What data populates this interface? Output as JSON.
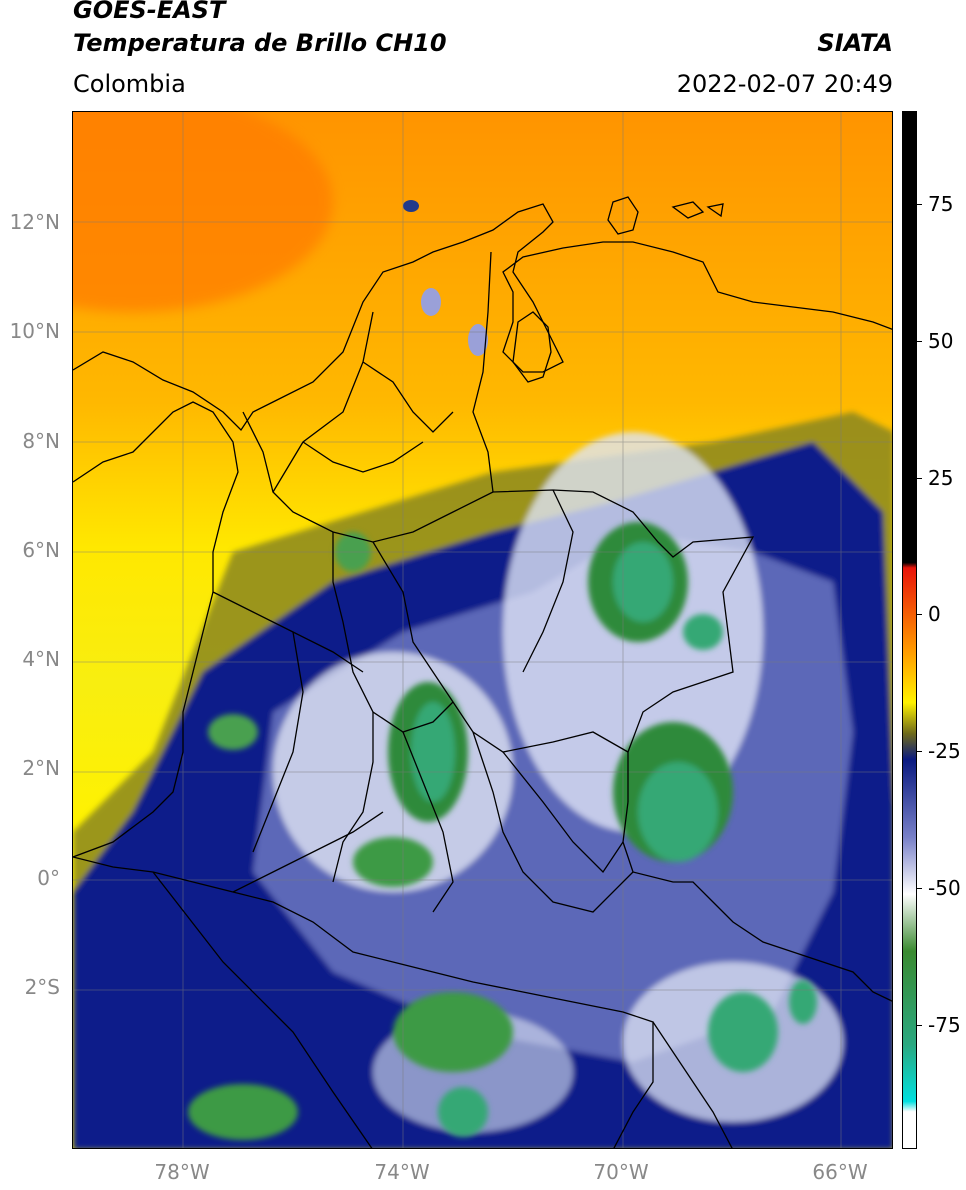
{
  "header": {
    "satellite": "GOES-EAST",
    "product": "Temperatura de Brillo CH10",
    "organization": "SIATA",
    "region": "Colombia",
    "datetime": "2022-02-07 20:49"
  },
  "map": {
    "lat_ticks": [
      "12°N",
      "10°N",
      "8°N",
      "6°N",
      "4°N",
      "2°N",
      "0°",
      "2°S"
    ],
    "lon_ticks": [
      "78°W",
      "74°W",
      "70°W",
      "66°W"
    ]
  },
  "colorbar": {
    "ticks": [
      "75",
      "50",
      "25",
      "0",
      "-25",
      "-50",
      "-75"
    ],
    "colors": {
      "black": "#000000",
      "red": "#e8140a",
      "orange": "#ff9a00",
      "yellow": "#fff200",
      "olive": "#6e6a1a",
      "navy": "#0a1a80",
      "white": "#ffffff",
      "green": "#3a8a30",
      "teal": "#2aa880",
      "cyan": "#00e0e0"
    }
  }
}
